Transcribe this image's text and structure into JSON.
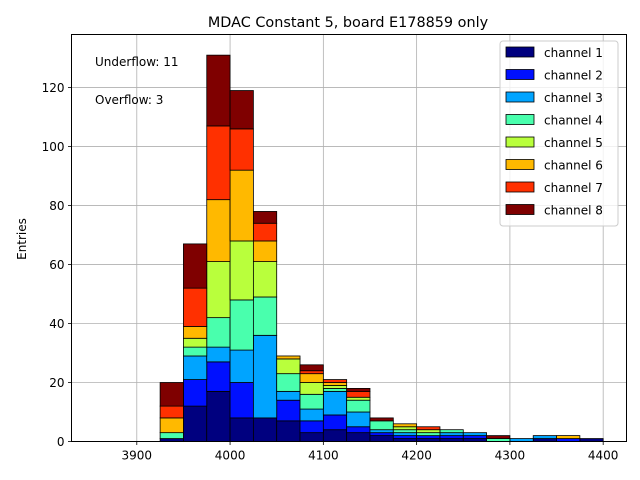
{
  "chart_data": {
    "type": "bar",
    "stacked": true,
    "title": "MDAC Constant 5, board E178859 only",
    "xlabel": "",
    "ylabel": "Entries",
    "xlim": [
      3830,
      4425
    ],
    "ylim": [
      0,
      138
    ],
    "grid": true,
    "legend_position": "top-right",
    "annotations": [
      "Underflow: 11",
      "Overflow: 3"
    ],
    "x_ticks": [
      3900,
      4000,
      4100,
      4200,
      4300,
      4400
    ],
    "y_ticks": [
      0,
      20,
      40,
      60,
      80,
      100,
      120
    ],
    "bin_edges": [
      3850,
      3875,
      3900,
      3925,
      3950,
      3975,
      4000,
      4025,
      4050,
      4075,
      4100,
      4125,
      4150,
      4175,
      4200,
      4225,
      4250,
      4275,
      4300,
      4325,
      4350,
      4375,
      4400
    ],
    "series": [
      {
        "name": "channel 1",
        "color": "#00007f",
        "values": [
          0,
          0,
          0,
          1,
          12,
          17,
          8,
          8,
          7,
          3,
          4,
          3,
          2,
          1,
          1,
          1,
          1,
          0,
          0,
          1,
          0,
          1
        ]
      },
      {
        "name": "channel 2",
        "color": "#0010ff",
        "values": [
          0,
          0,
          0,
          0,
          9,
          10,
          12,
          0,
          7,
          4,
          5,
          2,
          1,
          1,
          1,
          1,
          1,
          0,
          0,
          0,
          1,
          0
        ]
      },
      {
        "name": "channel 3",
        "color": "#00a4ff",
        "values": [
          0,
          0,
          0,
          0,
          8,
          5,
          11,
          28,
          3,
          4,
          8,
          5,
          1,
          1,
          0,
          1,
          1,
          0,
          1,
          1,
          0,
          0
        ]
      },
      {
        "name": "channel 4",
        "color": "#49ffad",
        "values": [
          0,
          0,
          0,
          2,
          3,
          10,
          17,
          13,
          6,
          5,
          1,
          4,
          3,
          1,
          1,
          1,
          0,
          1,
          0,
          0,
          0,
          0
        ]
      },
      {
        "name": "channel 5",
        "color": "#b9ff3c",
        "values": [
          0,
          0,
          0,
          0,
          3,
          19,
          20,
          12,
          5,
          4,
          1,
          1,
          0,
          1,
          1,
          0,
          0,
          0,
          0,
          0,
          0,
          0
        ]
      },
      {
        "name": "channel 6",
        "color": "#ffb900",
        "values": [
          0,
          0,
          0,
          5,
          4,
          21,
          24,
          7,
          1,
          3,
          1,
          0,
          0,
          1,
          0,
          0,
          0,
          0,
          0,
          0,
          1,
          0
        ]
      },
      {
        "name": "channel 7",
        "color": "#ff3000",
        "values": [
          0,
          0,
          0,
          4,
          13,
          25,
          14,
          6,
          0,
          1,
          1,
          2,
          0,
          0,
          1,
          0,
          0,
          0,
          0,
          0,
          0,
          0
        ]
      },
      {
        "name": "channel 8",
        "color": "#7f0000",
        "values": [
          0,
          0,
          0,
          8,
          15,
          24,
          13,
          4,
          0,
          2,
          0,
          1,
          1,
          0,
          0,
          0,
          0,
          1,
          0,
          0,
          0,
          0
        ]
      }
    ]
  }
}
